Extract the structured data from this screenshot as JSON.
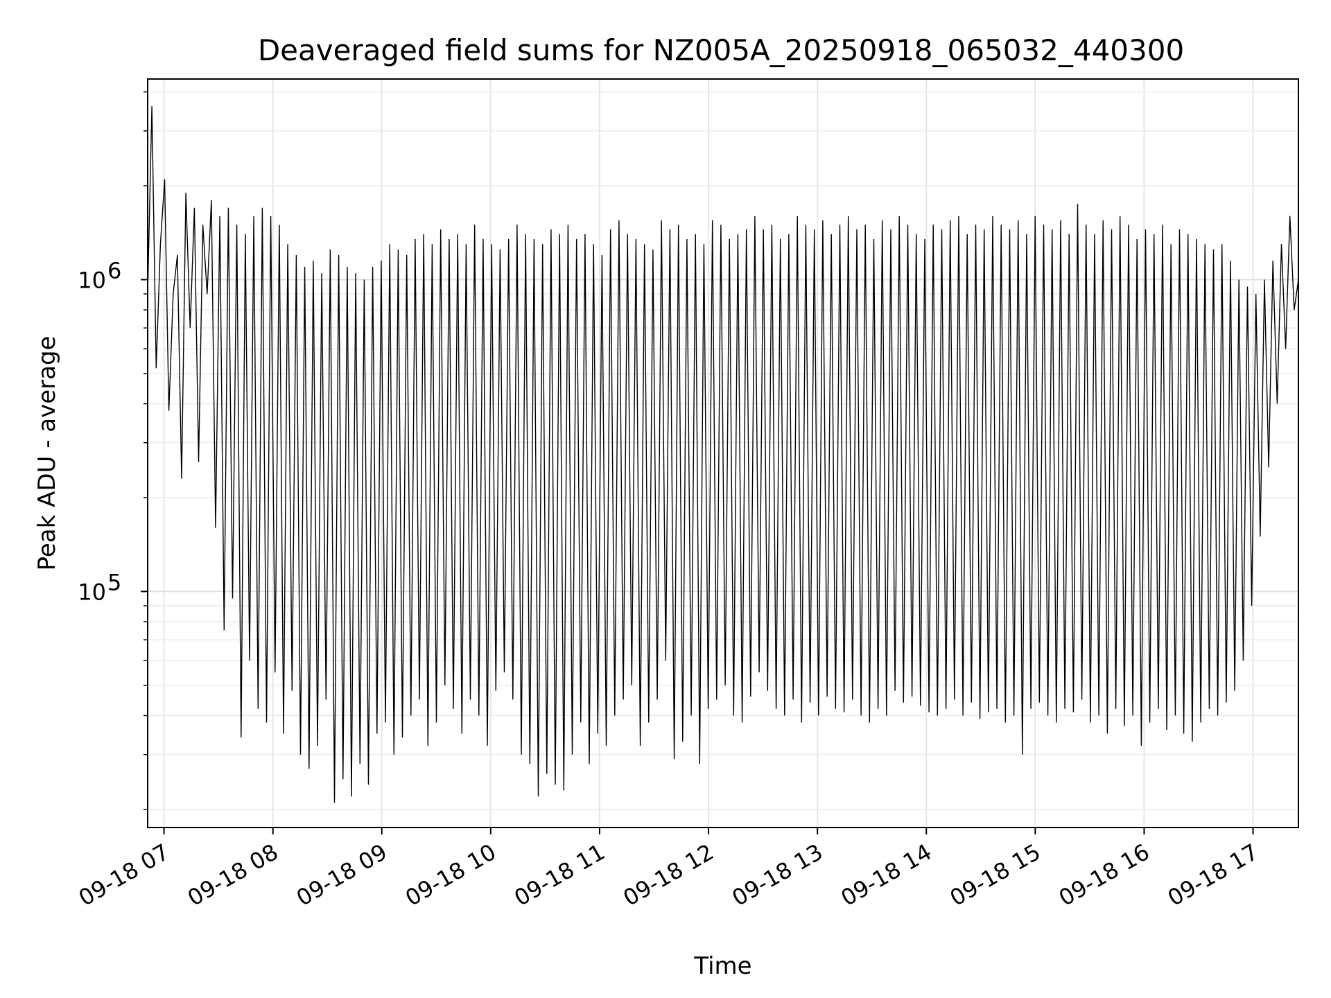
{
  "chart_data": {
    "type": "line",
    "title": "Deaveraged field sums for NZ005A_20250918_065032_440300",
    "xlabel": "Time",
    "ylabel": "Peak ADU - average",
    "xscale": "time",
    "yscale": "log",
    "grid": true,
    "line_color": "#000000",
    "x_ticks": [
      "09-18 07",
      "09-18 08",
      "09-18 09",
      "09-18 10",
      "09-18 11",
      "09-18 12",
      "09-18 13",
      "09-18 14",
      "09-18 15",
      "09-18 16",
      "09-18 17"
    ],
    "y_ticks": [
      {
        "mantissa": "10",
        "exponent": "5",
        "value": 100000
      },
      {
        "mantissa": "10",
        "exponent": "6",
        "value": 1000000
      }
    ],
    "xlim": [
      "2025-09-18T06:51",
      "2025-09-18T17:25"
    ],
    "ylim": [
      17500,
      4400000
    ],
    "series": [
      {
        "x_start": "2025-09-18T06:51",
        "x_end": "2025-09-18T17:25",
        "y": [
          900000,
          3600000,
          520000,
          1300000,
          2100000,
          380000,
          900000,
          1200000,
          230000,
          1900000,
          700000,
          1700000,
          260000,
          1500000,
          900000,
          1800000,
          160000,
          1600000,
          75000,
          1700000,
          95000,
          1500000,
          34000,
          1400000,
          60000,
          1600000,
          42000,
          1700000,
          38000,
          1600000,
          55000,
          1500000,
          35000,
          1300000,
          48000,
          1200000,
          30000,
          1100000,
          27000,
          1150000,
          32000,
          1050000,
          45000,
          1250000,
          21000,
          1200000,
          25000,
          1100000,
          22000,
          1050000,
          28000,
          1000000,
          24000,
          1100000,
          35000,
          1150000,
          38000,
          1300000,
          30000,
          1250000,
          34000,
          1200000,
          40000,
          1350000,
          45000,
          1400000,
          32000,
          1300000,
          38000,
          1450000,
          50000,
          1350000,
          42000,
          1400000,
          35000,
          1300000,
          45000,
          1500000,
          40000,
          1350000,
          32000,
          1300000,
          48000,
          1250000,
          55000,
          1350000,
          45000,
          1500000,
          30000,
          1400000,
          28000,
          1350000,
          22000,
          1300000,
          26000,
          1450000,
          24000,
          1400000,
          23000,
          1500000,
          30000,
          1350000,
          38000,
          1400000,
          28000,
          1300000,
          35000,
          1200000,
          32000,
          1450000,
          40000,
          1550000,
          45000,
          1400000,
          50000,
          1350000,
          32000,
          1300000,
          38000,
          1250000,
          45000,
          1550000,
          60000,
          1450000,
          29000,
          1500000,
          33000,
          1350000,
          40000,
          1400000,
          28000,
          1300000,
          42000,
          1550000,
          45000,
          1500000,
          50000,
          1350000,
          40000,
          1400000,
          38000,
          1450000,
          46000,
          1600000,
          55000,
          1450000,
          48000,
          1500000,
          42000,
          1350000,
          40000,
          1400000,
          45000,
          1600000,
          38000,
          1500000,
          44000,
          1450000,
          40000,
          1550000,
          46000,
          1400000,
          42000,
          1500000,
          41000,
          1600000,
          45000,
          1450000,
          40000,
          1500000,
          38000,
          1350000,
          42000,
          1550000,
          40000,
          1450000,
          48000,
          1600000,
          44000,
          1500000,
          46000,
          1400000,
          43000,
          1350000,
          41000,
          1500000,
          40000,
          1450000,
          42000,
          1550000,
          45000,
          1600000,
          40000,
          1400000,
          44000,
          1500000,
          39000,
          1450000,
          41000,
          1600000,
          42000,
          1500000,
          38000,
          1450000,
          40000,
          1550000,
          30000,
          1400000,
          42000,
          1600000,
          44000,
          1500000,
          40000,
          1450000,
          38000,
          1550000,
          42000,
          1400000,
          41000,
          1750000,
          45000,
          1500000,
          38000,
          1400000,
          40000,
          1550000,
          35000,
          1450000,
          42000,
          1600000,
          37000,
          1500000,
          40000,
          1350000,
          32000,
          1450000,
          38000,
          1400000,
          42000,
          1500000,
          36000,
          1300000,
          40000,
          1450000,
          35000,
          1400000,
          33000,
          1350000,
          38000,
          1300000,
          42000,
          1250000,
          40000,
          1300000,
          44000,
          1150000,
          48000,
          1000000,
          60000,
          950000,
          90000,
          900000,
          150000,
          1000000,
          250000,
          1150000,
          400000,
          1300000,
          600000,
          1600000,
          800000,
          1000000
        ]
      }
    ]
  }
}
